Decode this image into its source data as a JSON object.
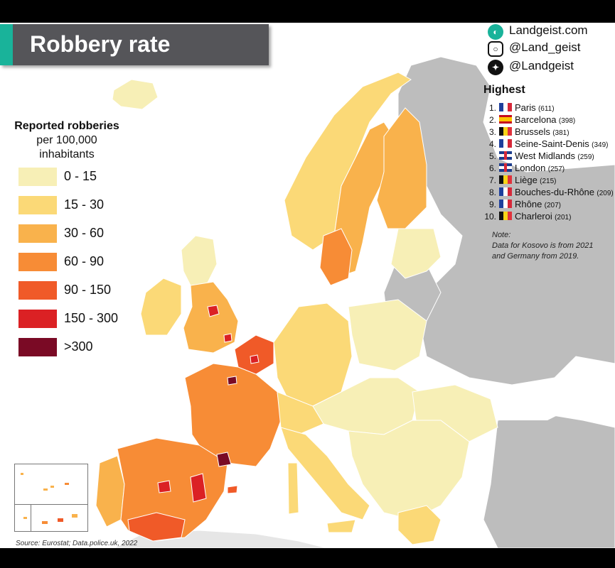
{
  "title": "Robbery rate",
  "legend": {
    "title_line1": "Reported robberies",
    "title_line2": "per 100,000",
    "title_line3": "inhabitants",
    "items": [
      {
        "label": "0  -  15",
        "color": "#f7efb6"
      },
      {
        "label": "15  -  30",
        "color": "#fbd977"
      },
      {
        "label": "30  -  60",
        "color": "#f9b24c"
      },
      {
        "label": "60  -  90",
        "color": "#f78c36"
      },
      {
        "label": "90  - 150",
        "color": "#f05a28"
      },
      {
        "label": "150 - 300",
        "color": "#db2124"
      },
      {
        "label": ">300",
        "color": "#7a0a25"
      }
    ]
  },
  "social": {
    "website": "Landgeist.com",
    "instagram": "@Land_geist",
    "twitter": "@Landgeist",
    "icons": [
      "globe-icon",
      "instagram-icon",
      "twitter-icon"
    ]
  },
  "highest": {
    "title": "Highest",
    "items": [
      {
        "rank": "1.",
        "flag": "fr",
        "name": "Paris",
        "value": "(611)"
      },
      {
        "rank": "2.",
        "flag": "es",
        "name": "Barcelona",
        "value": "(398)"
      },
      {
        "rank": "3.",
        "flag": "be",
        "name": "Brussels",
        "value": "(381)"
      },
      {
        "rank": "4.",
        "flag": "fr",
        "name": "Seine-Saint-Denis",
        "value": "(349)"
      },
      {
        "rank": "5.",
        "flag": "gb",
        "name": "West Midlands",
        "value": "(259)"
      },
      {
        "rank": "6.",
        "flag": "gb",
        "name": "London",
        "value": "(257)"
      },
      {
        "rank": "7.",
        "flag": "be",
        "name": "Liège",
        "value": "(215)"
      },
      {
        "rank": "8.",
        "flag": "fr",
        "name": "Bouches-du-Rhône",
        "value": "(209)"
      },
      {
        "rank": "9.",
        "flag": "fr",
        "name": "Rhône",
        "value": "(207)"
      },
      {
        "rank": "10.",
        "flag": "be",
        "name": "Charleroi",
        "value": "(201)"
      }
    ]
  },
  "note": {
    "line1": "Note:",
    "line2": "Data for Kosovo is from 2021",
    "line3": "and Germany from 2019."
  },
  "source": "Source: Eurostat; Data.police.uk, 2022",
  "colors": {
    "accent": "#19b39a",
    "title_bar": "#555559",
    "no_data": "#bdbdbd",
    "border": "#ffffff"
  }
}
